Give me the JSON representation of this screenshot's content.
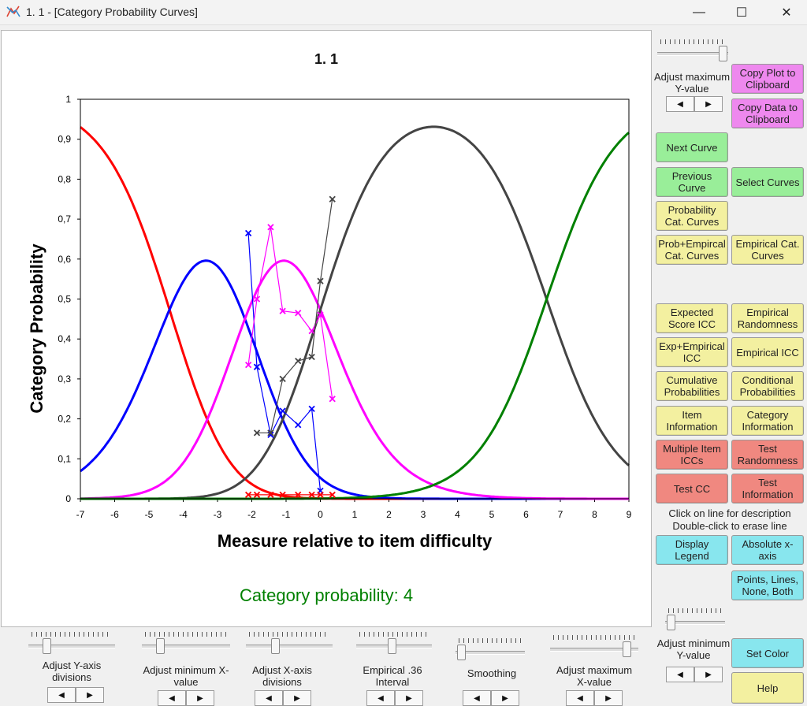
{
  "window": {
    "title": "1. 1 - [Category Probability Curves]",
    "minimize_glyph": "—",
    "maximize_glyph": "☐",
    "close_glyph": "✕"
  },
  "chart_data": {
    "type": "line",
    "title": "1. 1",
    "xlabel": "Measure relative to item difficulty",
    "ylabel": "Category Probability",
    "xlim": [
      -7,
      9
    ],
    "ylim": [
      0,
      1
    ],
    "x_ticks": [
      "-7",
      "-6",
      "-5",
      "-4",
      "-3",
      "-2",
      "-1",
      "0",
      "1",
      "2",
      "3",
      "4",
      "5",
      "6",
      "7",
      "8",
      "9"
    ],
    "y_ticks": [
      "0",
      "0,1",
      "0,2",
      "0,3",
      "0,4",
      "0,5",
      "0,6",
      "0,7",
      "0,8",
      "0,9",
      "1"
    ],
    "thresholds": [
      -4.4,
      -2.2,
      0.0,
      6.6
    ],
    "series": [
      {
        "color": "#ff0000",
        "category": 0
      },
      {
        "color": "#0000ff",
        "category": 1
      },
      {
        "color": "#ff00ff",
        "category": 2
      },
      {
        "color": "#444444",
        "category": 3
      },
      {
        "color": "#008000",
        "category": 4
      }
    ],
    "empirical": [
      {
        "color": "#0000ff",
        "points": [
          [
            -2.1,
            0.665
          ],
          [
            -1.85,
            0.33
          ],
          [
            -1.45,
            0.16
          ],
          [
            -1.1,
            0.22
          ],
          [
            -0.65,
            0.185
          ],
          [
            -0.25,
            0.225
          ],
          [
            0.0,
            0.02
          ]
        ]
      },
      {
        "color": "#ff00ff",
        "points": [
          [
            -2.1,
            0.335
          ],
          [
            -1.85,
            0.5
          ],
          [
            -1.45,
            0.68
          ],
          [
            -1.1,
            0.47
          ],
          [
            -0.65,
            0.465
          ],
          [
            -0.25,
            0.42
          ],
          [
            0.0,
            0.46
          ],
          [
            0.35,
            0.25
          ]
        ]
      },
      {
        "color": "#444444",
        "points": [
          [
            -1.85,
            0.165
          ],
          [
            -1.45,
            0.165
          ],
          [
            -1.1,
            0.3
          ],
          [
            -0.65,
            0.345
          ],
          [
            -0.25,
            0.355
          ],
          [
            0.0,
            0.545
          ],
          [
            0.35,
            0.75
          ]
        ]
      },
      {
        "color": "#ff0000",
        "points": [
          [
            -2.1,
            0.01
          ],
          [
            -1.85,
            0.01
          ],
          [
            -1.45,
            0.01
          ],
          [
            -1.1,
            0.01
          ],
          [
            -0.65,
            0.01
          ],
          [
            -0.25,
            0.01
          ],
          [
            0.0,
            0.01
          ],
          [
            0.35,
            0.01
          ]
        ]
      }
    ],
    "status": "Category probability: 4",
    "status_color": "#008000"
  },
  "side": {
    "adjust_max_y": "Adjust maximum Y-value",
    "copy_plot": "Copy Plot to Clipboard",
    "copy_data": "Copy Data to Clipboard",
    "next_curve": "Next Curve",
    "previous_curve": "Previous Curve",
    "select_curves": "Select Curves",
    "probability_cat_curves": "Probability Cat. Curves",
    "prob_empirical_cat_curves": "Prob+Empircal Cat. Curves",
    "empirical_cat_curves": "Empirical Cat. Curves",
    "expected_score_icc": "Expected Score ICC",
    "empirical_randomness": "Empirical Randomness",
    "exp_empirical_icc": "Exp+Empirical ICC",
    "empirical_icc": "Empirical ICC",
    "cumulative_probabilities": "Cumulative Probabilities",
    "conditional_probabilities": "Conditional Probabilities",
    "item_information": "Item Information",
    "category_information": "Category Information",
    "multiple_item_iccs": "Multiple Item ICCs",
    "test_randomness": "Test Randomness",
    "test_cc": "Test CC",
    "test_information": "Test Information",
    "click_line_note": "Click on line for description",
    "double_click_note": "Double-click to erase line",
    "display_legend": "Display Legend",
    "absolute_x_axis": "Absolute x-axis",
    "points_lines": "Points, Lines, None, Both",
    "adjust_min_y": "Adjust minimum Y-value",
    "set_color": "Set Color",
    "help": "Help"
  },
  "bottom": {
    "y_axis_divisions": "Adjust Y-axis divisions",
    "min_x_value": "Adjust minimum X-value",
    "x_axis_divisions": "Adjust X-axis divisions",
    "empirical_interval": "Empirical .36 Interval",
    "smoothing": "Smoothing",
    "max_x_value": "Adjust maximum X-value"
  },
  "spinner": {
    "left": "◀",
    "right": "▶"
  }
}
